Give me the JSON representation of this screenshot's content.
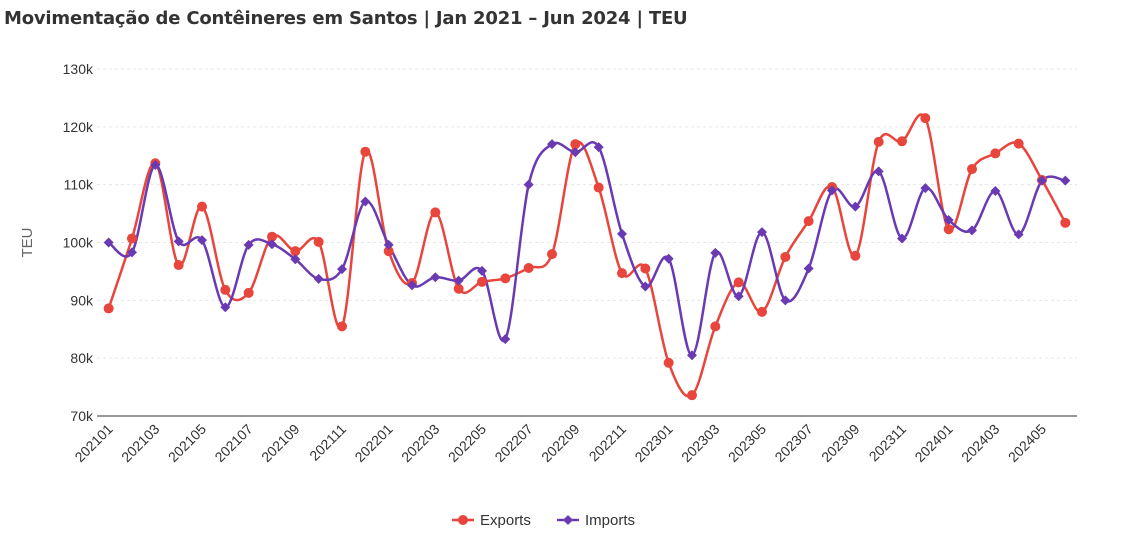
{
  "chart_data": {
    "type": "line",
    "title": "Movimentação de Contêineres em Santos | Jan 2021 – Jun 2024 | TEU",
    "xlabel": "",
    "ylabel": "TEU",
    "ylim": [
      70000,
      130000
    ],
    "yticks": [
      70000,
      80000,
      90000,
      100000,
      110000,
      120000,
      130000
    ],
    "ytick_labels": [
      "70k",
      "80k",
      "90k",
      "100k",
      "110k",
      "120k",
      "130k"
    ],
    "categories": [
      "202101",
      "202102",
      "202103",
      "202104",
      "202105",
      "202106",
      "202107",
      "202108",
      "202109",
      "202110",
      "202111",
      "202112",
      "202201",
      "202202",
      "202203",
      "202204",
      "202205",
      "202206",
      "202207",
      "202208",
      "202209",
      "202210",
      "202211",
      "202212",
      "202301",
      "202302",
      "202303",
      "202304",
      "202305",
      "202306",
      "202307",
      "202308",
      "202309",
      "202310",
      "202311",
      "202312",
      "202401",
      "202402",
      "202403",
      "202404",
      "202405",
      "202406"
    ],
    "xtick_labels": [
      "202101",
      "202103",
      "202105",
      "202107",
      "202109",
      "202111",
      "202201",
      "202203",
      "202205",
      "202207",
      "202209",
      "202211",
      "202301",
      "202303",
      "202305",
      "202307",
      "202309",
      "202311",
      "202401",
      "202403",
      "202405"
    ],
    "legend_position": "bottom-center",
    "grid": true,
    "series": [
      {
        "name": "Exports",
        "color": "#e8453c",
        "marker": "circle",
        "values": [
          88600,
          100700,
          113700,
          96100,
          106200,
          91800,
          91300,
          101000,
          98500,
          100100,
          85500,
          115700,
          98500,
          93000,
          105200,
          92000,
          93200,
          93800,
          95600,
          98000,
          117000,
          109500,
          94700,
          95500,
          79200,
          73600,
          85500,
          93100,
          88000,
          97500,
          103700,
          109600,
          97700,
          117400,
          117500,
          121500,
          102300,
          112700,
          115400,
          117100,
          110800,
          103400
        ]
      },
      {
        "name": "Imports",
        "color": "#6a3ab2",
        "marker": "diamond",
        "values": [
          100000,
          98300,
          113400,
          100200,
          100400,
          88800,
          99600,
          99700,
          97100,
          93700,
          95400,
          107100,
          99600,
          92600,
          94000,
          93400,
          95100,
          83300,
          110000,
          117000,
          115600,
          116500,
          101500,
          92400,
          97200,
          80500,
          98200,
          90700,
          101800,
          90000,
          95500,
          109000,
          106200,
          112300,
          100700,
          109400,
          103900,
          102100,
          108900,
          101400,
          110700,
          110700
        ]
      }
    ]
  }
}
